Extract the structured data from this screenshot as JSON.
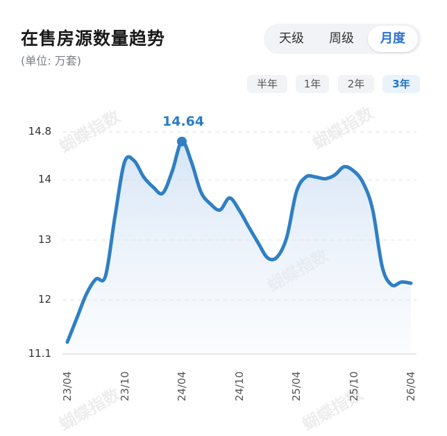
{
  "header": {
    "title": "在售房源数量趋势",
    "subtitle": "(单位: 万套)"
  },
  "period_tabs": [
    {
      "label": "天级",
      "active": false
    },
    {
      "label": "周级",
      "active": false
    },
    {
      "label": "月度",
      "active": true
    }
  ],
  "range_tabs": [
    {
      "label": "半年",
      "active": false
    },
    {
      "label": "1年",
      "active": false
    },
    {
      "label": "2年",
      "active": false
    },
    {
      "label": "3年",
      "active": true
    }
  ],
  "watermark": "蝴蝶指数",
  "colors": {
    "line": "#2f7fc4",
    "accent": "#2a6fd6"
  },
  "chart_data": {
    "type": "area",
    "title": "在售房源数量趋势",
    "ylabel": "万套",
    "ylim": [
      11.1,
      14.8
    ],
    "yticks": [
      11.1,
      12,
      13,
      14,
      14.8
    ],
    "xticks": [
      "23/04",
      "23/10",
      "24/04",
      "24/10",
      "25/04",
      "25/10",
      "26/04"
    ],
    "grid": "horizontal-dashed",
    "peak": {
      "x": "24/04",
      "value": "14.64"
    },
    "series": [
      {
        "x": [
          "23/04",
          "23/05",
          "23/06",
          "23/07",
          "23/08",
          "23/09",
          "23/10",
          "23/11",
          "23/12",
          "24/01",
          "24/02",
          "24/03",
          "24/04",
          "24/05",
          "24/06",
          "24/07",
          "24/08",
          "24/09",
          "24/10",
          "24/11",
          "24/12",
          "25/01",
          "25/02",
          "25/03",
          "25/04",
          "25/05",
          "25/06",
          "25/07",
          "25/08",
          "25/09",
          "25/10",
          "25/11",
          "25/12",
          "26/01",
          "26/02",
          "26/03",
          "26/04"
        ],
        "values": [
          11.3,
          11.7,
          12.1,
          12.35,
          12.4,
          13.4,
          14.3,
          14.32,
          14.05,
          13.88,
          13.78,
          14.15,
          14.64,
          14.3,
          13.8,
          13.6,
          13.5,
          13.7,
          13.5,
          13.22,
          12.95,
          12.7,
          12.72,
          13.05,
          13.8,
          14.05,
          14.05,
          14.02,
          14.08,
          14.22,
          14.15,
          13.95,
          13.5,
          12.55,
          12.25,
          12.3,
          12.28
        ]
      }
    ]
  }
}
